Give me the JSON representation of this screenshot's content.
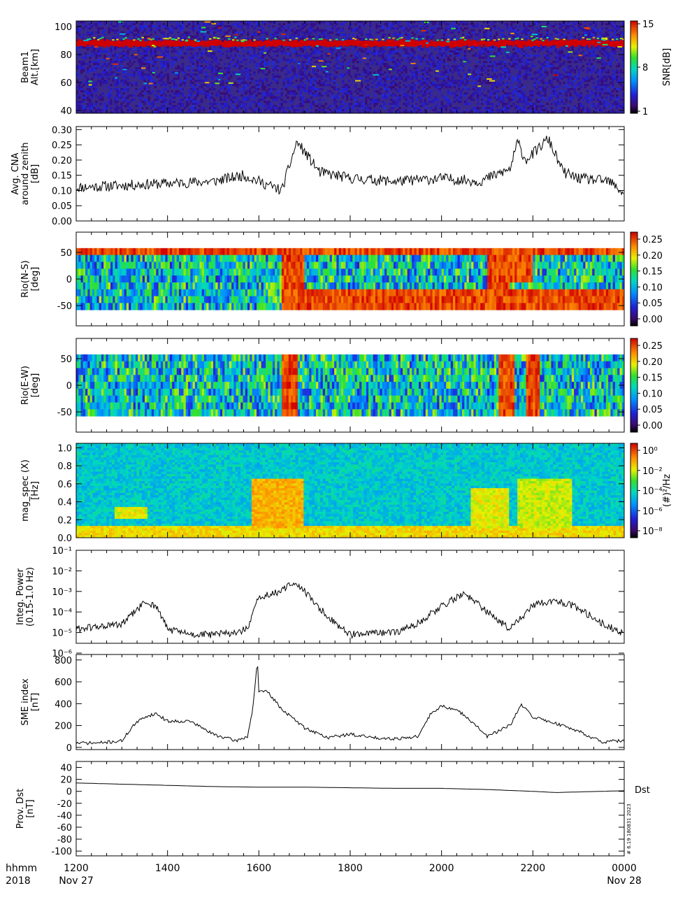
{
  "chart_data": [
    {
      "type": "heatmap",
      "ylabel": [
        "Beam1",
        "Alt.[km]"
      ],
      "yticks": [
        40,
        60,
        80,
        100
      ],
      "ylim": [
        38,
        104
      ],
      "colorbar": {
        "label": "SNR[dB]",
        "ticks": [
          "15",
          "8",
          "1"
        ],
        "range": [
          1,
          15
        ]
      },
      "features": [
        {
          "x_start": "1200",
          "x_end": "0000",
          "alt_km": 88,
          "snr_db": 15,
          "note": "persistent echo layer"
        }
      ]
    },
    {
      "type": "line",
      "ylabel": [
        "Avg. CNA",
        "around zenith",
        "[dB]"
      ],
      "ylim": [
        0,
        0.31
      ],
      "yticks": [
        "0.00",
        "0.05",
        "0.10",
        "0.15",
        "0.20",
        "0.25",
        "0.30"
      ],
      "x": [
        "1200",
        "1330",
        "1500",
        "1540",
        "1630",
        "1650",
        "1720",
        "1800",
        "1900",
        "2000",
        "2050",
        "2130",
        "2140",
        "2150",
        "2200",
        "2220",
        "2240",
        "2300",
        "2340",
        "0000"
      ],
      "values": [
        0.11,
        0.12,
        0.13,
        0.15,
        0.1,
        0.26,
        0.16,
        0.14,
        0.13,
        0.14,
        0.13,
        0.17,
        0.26,
        0.2,
        0.22,
        0.27,
        0.16,
        0.14,
        0.13,
        0.09
      ]
    },
    {
      "type": "heatmap",
      "ylabel": [
        "Rio(N-S)",
        "[deg]"
      ],
      "yticks": [
        "50",
        "0",
        "-50"
      ],
      "ylim": [
        -88,
        88
      ],
      "colorbar": {
        "ticks": [
          "0.25",
          "0.20",
          "0.15",
          "0.10",
          "0.05",
          "0.00"
        ],
        "range": [
          0,
          0.28
        ]
      }
    },
    {
      "type": "heatmap",
      "ylabel": [
        "Rio(E-W)",
        "[deg]"
      ],
      "yticks": [
        "50",
        "0",
        "-50"
      ],
      "ylim": [
        -88,
        88
      ],
      "colorbar": {
        "ticks": [
          "0.25",
          "0.20",
          "0.15",
          "0.10",
          "0.05",
          "0.00"
        ],
        "range": [
          0,
          0.28
        ]
      }
    },
    {
      "type": "heatmap",
      "ylabel": [
        "mag_spec (X)",
        "[Hz]"
      ],
      "yticks": [
        "0.0",
        "0.2",
        "0.4",
        "0.6",
        "0.8",
        "1.0"
      ],
      "ylim": [
        0,
        1.05
      ],
      "colorbar": {
        "label": "(#)²/Hz",
        "ticks": [
          "10⁰",
          "10⁻²",
          "10⁻⁴",
          "10⁻⁶",
          "10⁻⁸"
        ],
        "range_log10": [
          -9,
          0.3
        ]
      }
    },
    {
      "type": "line",
      "ylabel": [
        "Integ. Power",
        "(0.15-1.0 Hz)"
      ],
      "yscale": "log",
      "ylim": [
        3e-06,
        0.1
      ],
      "yticks": [
        "10⁻¹",
        "10⁻²",
        "10⁻³",
        "10⁻⁴",
        "10⁻⁵",
        "10⁻⁶"
      ],
      "x": [
        "1200",
        "1300",
        "1330",
        "1345",
        "1400",
        "1430",
        "1500",
        "1530",
        "1545",
        "1600",
        "1630",
        "1645",
        "1700",
        "1730",
        "1800",
        "1900",
        "1930",
        "2000",
        "2030",
        "2100",
        "2130",
        "2200",
        "2230",
        "2300",
        "2330",
        "0000"
      ],
      "values": [
        1.5e-05,
        2.5e-05,
        0.0003,
        0.0002,
        1.5e-05,
        8e-06,
        8e-06,
        1e-05,
        1.5e-05,
        0.0005,
        0.001,
        0.003,
        0.001,
        6e-05,
        8e-06,
        1e-05,
        3e-05,
        0.0002,
        0.0008,
        0.0001,
        1.5e-05,
        0.0002,
        0.0004,
        0.00015,
        3e-05,
        8e-06
      ]
    },
    {
      "type": "line",
      "ylabel": [
        "SME index",
        "[nT]"
      ],
      "ylim": [
        -20,
        850
      ],
      "yticks": [
        "0",
        "200",
        "400",
        "600",
        "800"
      ],
      "x": [
        "1200",
        "1230",
        "1300",
        "1315",
        "1330",
        "1345",
        "1400",
        "1430",
        "1500",
        "1530",
        "1545",
        "1552",
        "1558",
        "1600",
        "1610",
        "1630",
        "1700",
        "1730",
        "1800",
        "1830",
        "1900",
        "1930",
        "1945",
        "2000",
        "2015",
        "2030",
        "2100",
        "2130",
        "2145",
        "2200",
        "2230",
        "2300",
        "2330",
        "0000"
      ],
      "values": [
        40,
        40,
        60,
        200,
        280,
        310,
        240,
        240,
        120,
        60,
        100,
        350,
        800,
        500,
        520,
        350,
        180,
        90,
        120,
        90,
        80,
        100,
        300,
        380,
        350,
        300,
        100,
        200,
        390,
        280,
        220,
        150,
        50,
        60
      ]
    },
    {
      "type": "line",
      "ylabel": [
        "Prov. Dst",
        "[nT]"
      ],
      "ylim": [
        -108,
        50
      ],
      "yticks": [
        "40",
        "20",
        "0",
        "-20",
        "-40",
        "-60",
        "-80",
        "-100"
      ],
      "x": [
        "1200",
        "1300",
        "1400",
        "1500",
        "1600",
        "1700",
        "1800",
        "1900",
        "2000",
        "2100",
        "2200",
        "2230",
        "2300",
        "0000"
      ],
      "values": [
        14,
        12,
        10,
        8,
        7,
        7,
        6,
        5,
        5,
        3,
        0,
        -2,
        -1,
        1
      ],
      "legend": "Dst",
      "annotation": "# 6.19 180831 2023"
    }
  ],
  "xaxis": {
    "ticks": [
      "1200",
      "1400",
      "1600",
      "1800",
      "2000",
      "2200",
      "0000"
    ],
    "row1_label": "hhmm",
    "row2_label": "2018",
    "start_date": "Nov 27",
    "end_date": "Nov 28"
  }
}
